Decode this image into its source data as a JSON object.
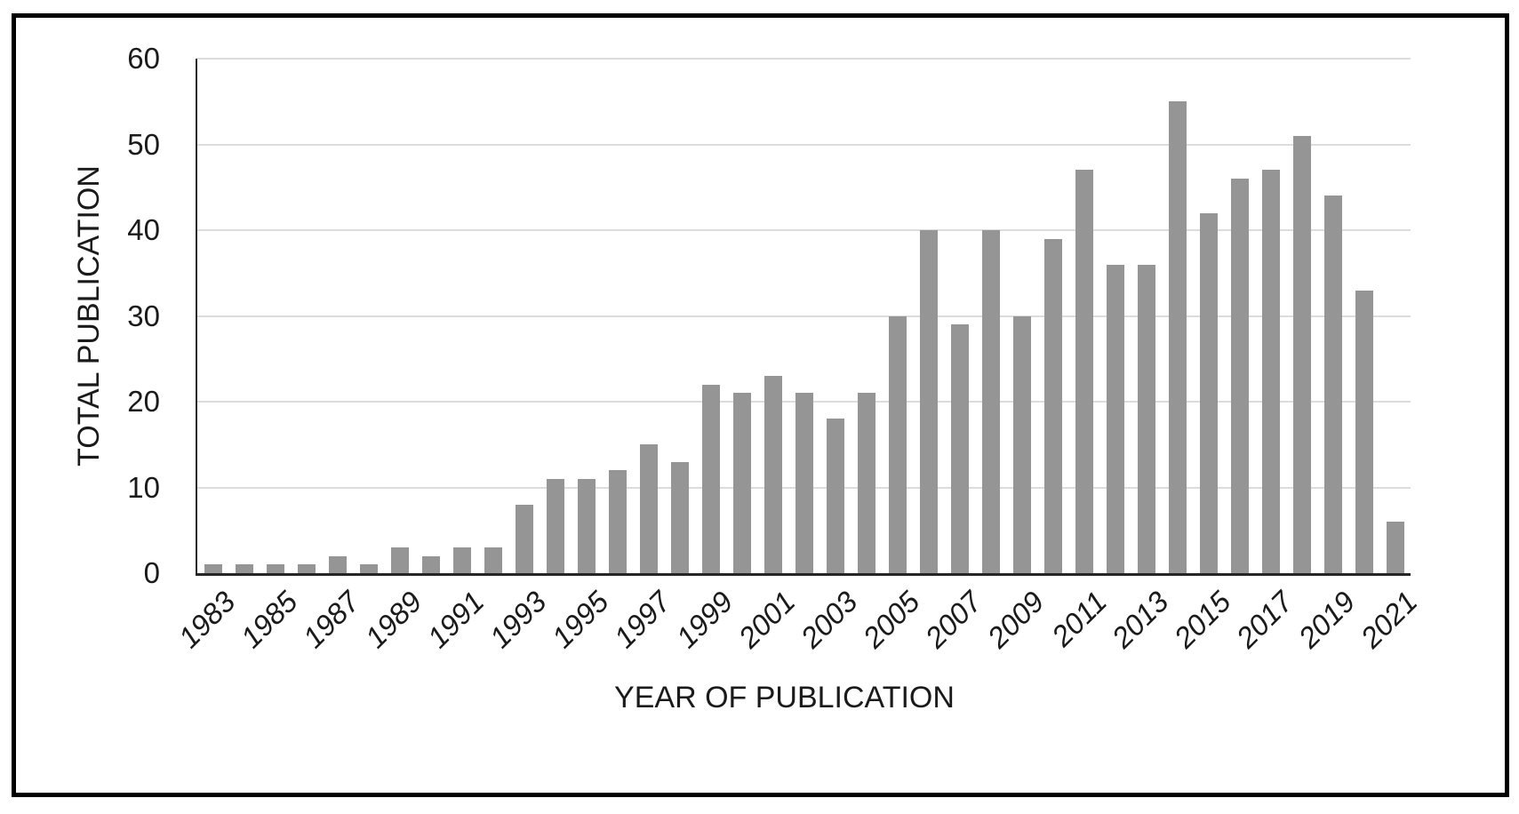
{
  "chart_data": {
    "type": "bar",
    "title": "",
    "xlabel": "YEAR OF PUBLICATION",
    "ylabel": "TOTAL PUBLICATION",
    "years": [
      1983,
      1984,
      1985,
      1986,
      1987,
      1988,
      1989,
      1990,
      1991,
      1992,
      1993,
      1994,
      1995,
      1996,
      1997,
      1998,
      1999,
      2000,
      2001,
      2002,
      2003,
      2004,
      2005,
      2006,
      2007,
      2008,
      2009,
      2010,
      2011,
      2012,
      2013,
      2014,
      2015,
      2016,
      2017,
      2018,
      2019,
      2020,
      2021
    ],
    "values": [
      1,
      1,
      1,
      1,
      2,
      1,
      3,
      2,
      3,
      3,
      8,
      11,
      11,
      12,
      15,
      13,
      22,
      21,
      23,
      21,
      18,
      21,
      30,
      40,
      29,
      40,
      30,
      39,
      47,
      36,
      36,
      55,
      42,
      46,
      47,
      51,
      44,
      33,
      6
    ],
    "x_tick_labels": [
      "1983",
      "1985",
      "1987",
      "1989",
      "1991",
      "1993",
      "1995",
      "1997",
      "1999",
      "2001",
      "2003",
      "2005",
      "2007",
      "2009",
      "2011",
      "2013",
      "2015",
      "2017",
      "2019",
      "2021"
    ],
    "y_ticks": [
      0,
      10,
      20,
      30,
      40,
      50,
      60
    ],
    "ylim": [
      0,
      60
    ],
    "grid": true,
    "legend": "none",
    "colors": {
      "bar": "#959595",
      "gridline": "#DCDCDC",
      "axis": "#262626",
      "frame": "#000000",
      "background": "#FFFFFF",
      "text": "#1A1A1A"
    }
  }
}
